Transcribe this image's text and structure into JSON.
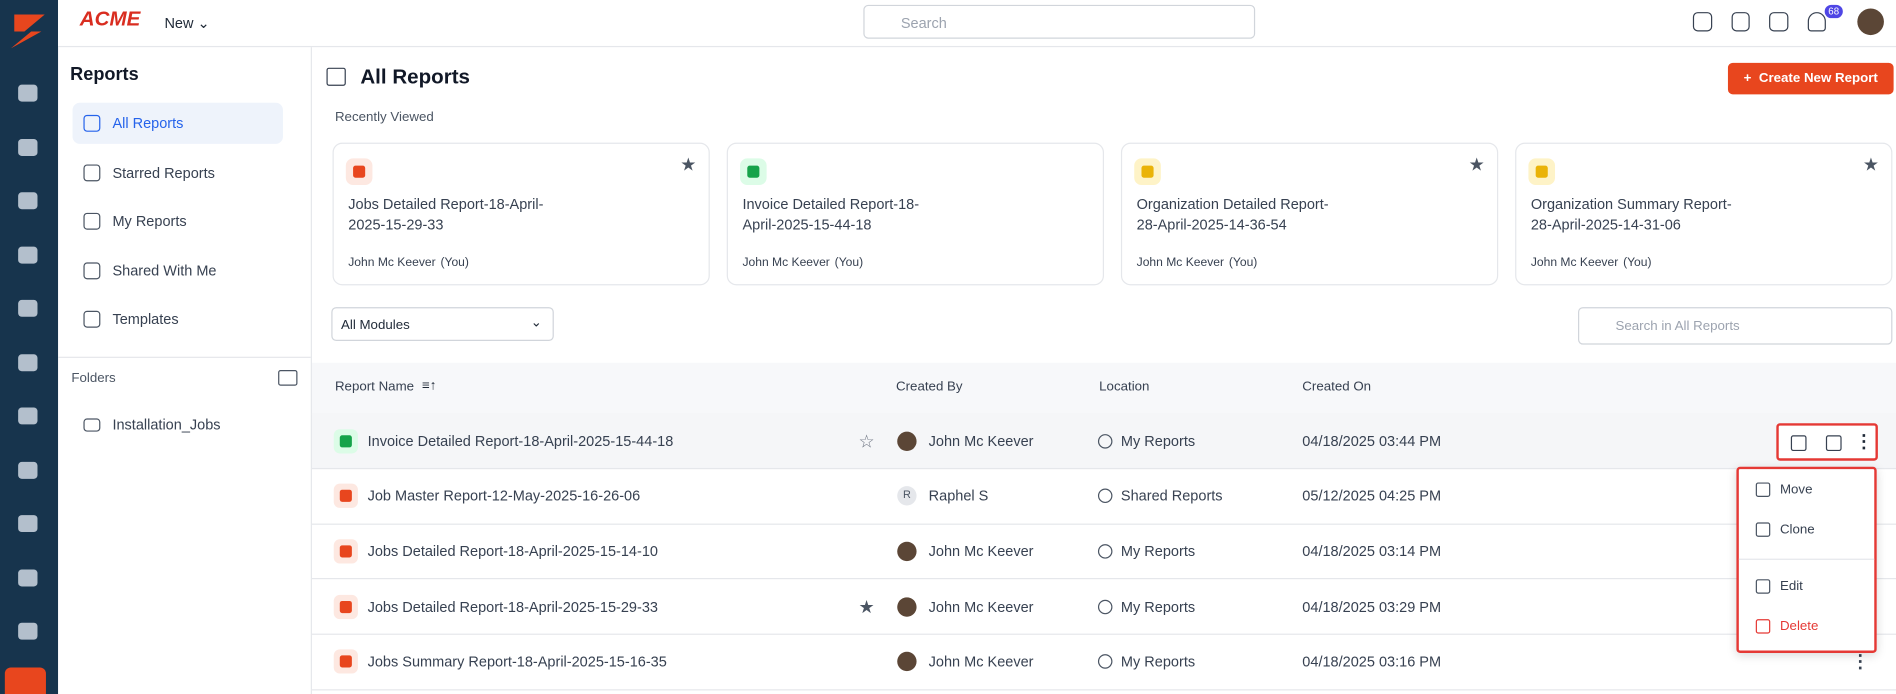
{
  "header": {
    "logo": "ACME",
    "new_button": "New",
    "search_placeholder": "Search",
    "notification_count": "68"
  },
  "sidebar": {
    "title": "Reports",
    "nav": [
      "All Reports",
      "Starred Reports",
      "My Reports",
      "Shared With Me",
      "Templates"
    ],
    "folders_title": "Folders",
    "folders": [
      "Installation_Jobs"
    ]
  },
  "main": {
    "title": "All Reports",
    "create_button": "Create New Report",
    "recent_title": "Recently Viewed",
    "recent": [
      {
        "name": "Jobs Detailed Report-18-April-2025-15-29-33",
        "author": "John Mc Keever",
        "you": "(You)",
        "starred": true
      },
      {
        "name": "Invoice Detailed Report-18-April-2025-15-44-18",
        "author": "John Mc Keever",
        "you": "(You)",
        "starred": false
      },
      {
        "name": "Organization Detailed Report-28-April-2025-14-36-54",
        "author": "John Mc Keever",
        "you": "(You)",
        "starred": true
      },
      {
        "name": "Organization Summary Report-28-April-2025-14-31-06",
        "author": "John Mc Keever",
        "you": "(You)",
        "starred": true
      }
    ],
    "module_filter": "All Modules",
    "search_placeholder": "Search in All Reports",
    "table": {
      "columns": [
        "Report Name",
        "Created By",
        "Location",
        "Created On"
      ],
      "rows": [
        [
          "Invoice Detailed Report-18-April-2025-15-44-18",
          "John Mc Keever",
          "My Reports",
          "04/18/2025 03:44 PM"
        ],
        [
          "Job Master Report-12-May-2025-16-26-06",
          "Raphel S",
          "Shared Reports",
          "05/12/2025 04:25 PM"
        ],
        [
          "Jobs Detailed Report-18-April-2025-15-14-10",
          "John Mc Keever",
          "My Reports",
          "04/18/2025 03:14 PM"
        ],
        [
          "Jobs Detailed Report-18-April-2025-15-29-33",
          "John Mc Keever",
          "My Reports",
          "04/18/2025 03:29 PM"
        ],
        [
          "Jobs Summary Report-18-April-2025-15-16-35",
          "John Mc Keever",
          "My Reports",
          "04/18/2025 03:16 PM"
        ]
      ],
      "starred": [
        false,
        false,
        false,
        true,
        false
      ],
      "avatar_initials": {
        "1": "R"
      }
    },
    "menu": [
      "Move",
      "Clone",
      "Edit",
      "Delete"
    ]
  }
}
